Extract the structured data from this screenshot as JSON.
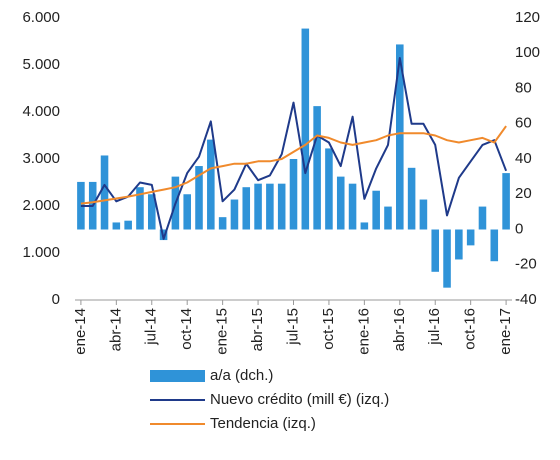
{
  "chart_data": {
    "type": "bar-line",
    "categories": [
      "ene-14",
      null,
      null,
      "abr-14",
      null,
      null,
      "jul-14",
      null,
      null,
      "oct-14",
      null,
      null,
      "ene-15",
      null,
      null,
      "abr-15",
      null,
      null,
      "jul-15",
      null,
      null,
      "oct-15",
      null,
      null,
      "ene-16",
      null,
      null,
      "abr-16",
      null,
      null,
      "jul-16",
      null,
      null,
      "oct-16",
      null,
      null,
      "ene-17"
    ],
    "series": [
      {
        "name": "a/a (dch.)",
        "type": "bar",
        "axis": "y2",
        "color": "#2f93d8",
        "values": [
          27,
          27,
          42,
          4,
          5,
          24,
          20,
          -6,
          30,
          20,
          36,
          51,
          7,
          17,
          24,
          26,
          26,
          26,
          40,
          114,
          70,
          46,
          30,
          26,
          4,
          22,
          13,
          105,
          35,
          17,
          -24,
          -33,
          -17,
          -9,
          13,
          -18,
          32
        ]
      },
      {
        "name": "Nuevo crédito (mill €) (izq.)",
        "type": "line",
        "color": "#1f3a8a",
        "values": [
          2000,
          2000,
          2450,
          2100,
          2200,
          2500,
          2450,
          1300,
          2050,
          2700,
          3050,
          3800,
          2100,
          2350,
          2900,
          2550,
          2650,
          3100,
          4200,
          2700,
          3500,
          3350,
          2850,
          3900,
          2150,
          2800,
          3300,
          5150,
          3750,
          3750,
          3300,
          1800,
          2600,
          2950,
          3300,
          3400,
          2750
        ]
      },
      {
        "name": "Tendencia (izq.)",
        "type": "line",
        "color": "#f08a2c",
        "values": [
          2050,
          2080,
          2120,
          2160,
          2200,
          2250,
          2300,
          2350,
          2400,
          2500,
          2650,
          2800,
          2850,
          2900,
          2900,
          2950,
          2950,
          3000,
          3150,
          3300,
          3500,
          3450,
          3350,
          3300,
          3350,
          3400,
          3500,
          3550,
          3550,
          3550,
          3500,
          3400,
          3350,
          3400,
          3450,
          3350,
          3700
        ]
      }
    ],
    "ylim": [
      0,
      6000
    ],
    "yticks": [
      0,
      {
        "value": 1000,
        "label": "1.000"
      },
      {
        "value": 2000,
        "label": "2.000"
      },
      {
        "value": 3000,
        "label": "3.000"
      },
      {
        "value": 4000,
        "label": "4.000"
      },
      {
        "value": 5000,
        "label": "5.000"
      },
      {
        "value": 6000,
        "label": "6.000"
      }
    ],
    "y2lim": [
      -40,
      120
    ],
    "y2ticks": [
      -40,
      -20,
      0,
      20,
      40,
      60,
      80,
      100,
      120
    ]
  }
}
